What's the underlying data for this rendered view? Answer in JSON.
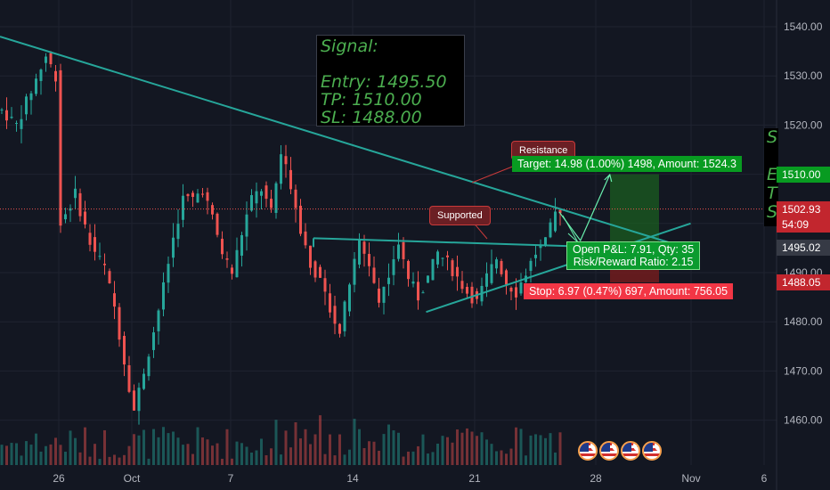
{
  "chart_data": {
    "type": "candlestick",
    "x_ticks": [
      "26",
      "Oct",
      "7",
      "14",
      "21",
      "28",
      "Nov",
      "6"
    ],
    "y_ticks": [
      "1540.00",
      "1530.00",
      "1520.00",
      "1510.00",
      "1490.00",
      "1480.00",
      "1470.00",
      "1460.00"
    ],
    "ylim": [
      1452,
      1543
    ],
    "grid": true,
    "price_path": [
      [
        0,
        1523
      ],
      [
        3,
        1520
      ],
      [
        6,
        1527
      ],
      [
        9,
        1534
      ],
      [
        11,
        1530
      ],
      [
        12,
        1500
      ],
      [
        15,
        1506
      ],
      [
        18,
        1496
      ],
      [
        21,
        1491
      ],
      [
        23,
        1483
      ],
      [
        25,
        1472
      ],
      [
        27,
        1462
      ],
      [
        29,
        1470
      ],
      [
        31,
        1478
      ],
      [
        33,
        1487
      ],
      [
        35,
        1497
      ],
      [
        37,
        1505
      ],
      [
        39,
        1505
      ],
      [
        41,
        1507
      ],
      [
        43,
        1501
      ],
      [
        45,
        1494
      ],
      [
        47,
        1490
      ],
      [
        49,
        1498
      ],
      [
        51,
        1505
      ],
      [
        53,
        1507
      ],
      [
        55,
        1502
      ],
      [
        57,
        1514
      ],
      [
        59,
        1508
      ],
      [
        61,
        1499
      ],
      [
        63,
        1492
      ],
      [
        65,
        1488
      ],
      [
        67,
        1483
      ],
      [
        69,
        1478
      ],
      [
        71,
        1488
      ],
      [
        73,
        1496
      ],
      [
        75,
        1492
      ],
      [
        77,
        1484
      ],
      [
        79,
        1490
      ],
      [
        81,
        1496
      ],
      [
        83,
        1489
      ],
      [
        85,
        1485
      ],
      [
        87,
        1489
      ],
      [
        89,
        1494
      ],
      [
        91,
        1492
      ],
      [
        93,
        1489
      ],
      [
        95,
        1486
      ],
      [
        97,
        1484
      ],
      [
        99,
        1489
      ],
      [
        101,
        1493
      ],
      [
        103,
        1488
      ],
      [
        105,
        1486
      ],
      [
        107,
        1490
      ],
      [
        109,
        1494
      ],
      [
        111,
        1496
      ],
      [
        113,
        1502
      ],
      [
        114,
        1503
      ]
    ],
    "resistance_line": [
      [
        0,
        1538
      ],
      [
        137,
        1496
      ]
    ],
    "support_line": [
      [
        87,
        1482
      ],
      [
        141,
        1500
      ]
    ],
    "flat_line": [
      [
        64,
        1497
      ],
      [
        129,
        1495
      ]
    ],
    "last_price": 1502.93,
    "positions": {
      "entry": 1495.5,
      "target": 1510.0,
      "stop": 1488.0
    },
    "price_tags": [
      {
        "text": "1510.00",
        "value": 1510.0,
        "color": "#089b21"
      },
      {
        "text": "1502.93",
        "value": 1502.93,
        "color": "#c2262e"
      },
      {
        "text": "54:09",
        "value": 1499.8,
        "color": "#c2262e"
      },
      {
        "text": "1495.02",
        "value": 1495.02,
        "color": "#363a45"
      },
      {
        "text": "1488.05",
        "value": 1488.05,
        "color": "#c2262e"
      }
    ]
  },
  "signal": {
    "title": "Signal:",
    "entry": "Entry: 1495.50",
    "tp": "TP: 1510.00",
    "sl": "SL: 1488.00"
  },
  "signal_clip": {
    "line1": "S",
    "line2": "E",
    "line3": "T",
    "line4": "S"
  },
  "labels": {
    "resistance": "Resistance",
    "supported": "Supported",
    "target": "Target: 14.98 (1.00%) 1498, Amount: 1524.3",
    "stop": "Stop: 6.97 (0.47%) 697, Amount: 756.05",
    "pnl": "Open P&L: 7.91, Qty: 35",
    "rr": "Risk/Reward Ratio: 2.15"
  },
  "events": [
    {
      "count": "5"
    },
    {
      "count": "3"
    },
    {
      "count": "2"
    },
    {
      "count": "5"
    }
  ],
  "colors": {
    "background": "#131722",
    "up": "#26a69a",
    "down": "#ef5350",
    "trend": "#26a69a",
    "target_fill": "#1b5e20",
    "stop_fill": "#7f1d1d"
  }
}
